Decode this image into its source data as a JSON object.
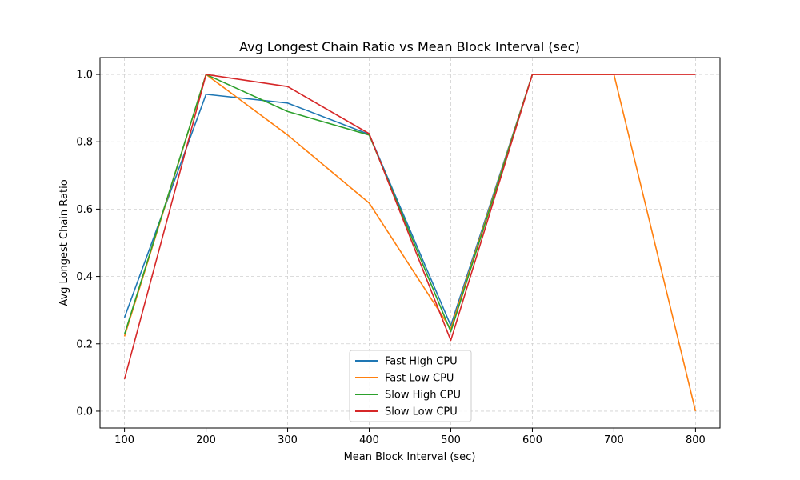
{
  "chart_data": {
    "type": "line",
    "title": "Avg Longest Chain Ratio vs Mean Block Interval (sec)",
    "xlabel": "Mean Block Interval (sec)",
    "ylabel": "Avg Longest Chain Ratio",
    "x": [
      100,
      200,
      300,
      400,
      500,
      600,
      700,
      800
    ],
    "xlim": [
      70,
      830
    ],
    "ylim": [
      -0.05,
      1.05
    ],
    "xticks": [
      100,
      200,
      300,
      400,
      500,
      600,
      700,
      800
    ],
    "yticks": [
      "0.0",
      "0.2",
      "0.4",
      "0.6",
      "0.8",
      "1.0"
    ],
    "grid": true,
    "legend_position": "bottom-center",
    "series": [
      {
        "name": "Fast High CPU",
        "color": "#1f77b4",
        "values": [
          0.278,
          0.941,
          0.915,
          0.822,
          0.254,
          1.0,
          null,
          null
        ]
      },
      {
        "name": "Fast Low CPU",
        "color": "#ff7f0e",
        "values": [
          0.222,
          1.0,
          0.82,
          0.618,
          0.244,
          1.0,
          1.0,
          0.0
        ]
      },
      {
        "name": "Slow High CPU",
        "color": "#2ca02c",
        "values": [
          0.228,
          1.0,
          0.89,
          0.82,
          0.236,
          1.0,
          null,
          null
        ]
      },
      {
        "name": "Slow Low CPU",
        "color": "#d62728",
        "values": [
          0.095,
          1.0,
          0.964,
          0.824,
          0.21,
          1.0,
          1.0,
          1.0
        ]
      }
    ]
  }
}
